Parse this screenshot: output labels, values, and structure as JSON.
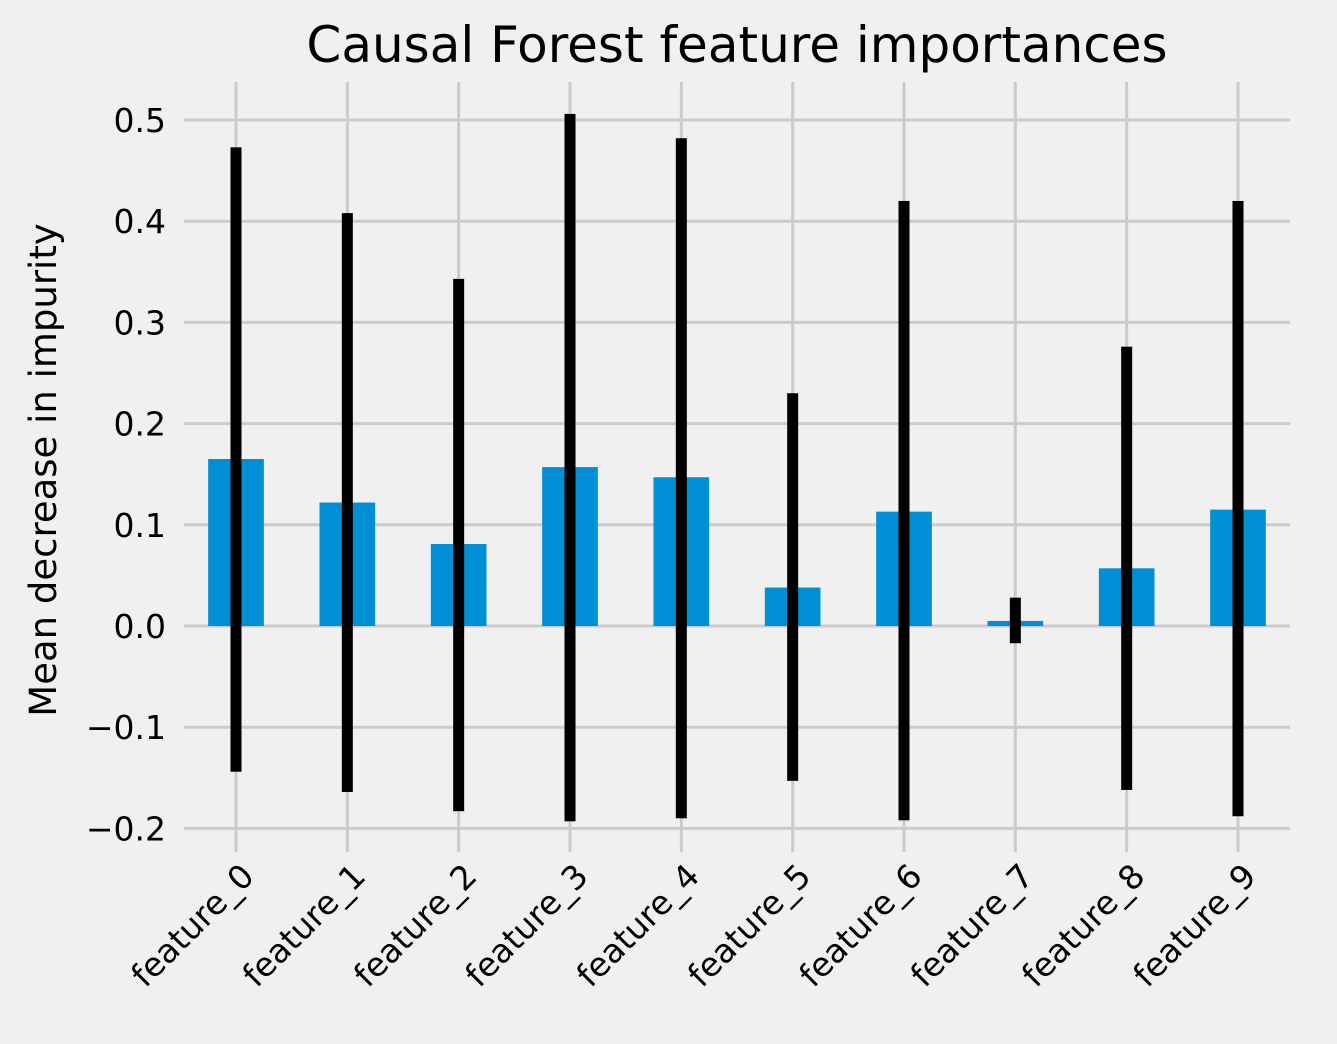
{
  "chart_data": {
    "type": "bar",
    "title": "Causal Forest feature importances",
    "xlabel": "",
    "ylabel": "Mean decrease in impurity",
    "categories": [
      "feature_0",
      "feature_1",
      "feature_2",
      "feature_3",
      "feature_4",
      "feature_5",
      "feature_6",
      "feature_7",
      "feature_8",
      "feature_9"
    ],
    "values": [
      0.165,
      0.122,
      0.081,
      0.157,
      0.147,
      0.038,
      0.113,
      0.005,
      0.057,
      0.115
    ],
    "error_upper": [
      0.473,
      0.408,
      0.343,
      0.506,
      0.482,
      0.23,
      0.42,
      0.028,
      0.276,
      0.42
    ],
    "error_lower": [
      -0.144,
      -0.164,
      -0.183,
      -0.193,
      -0.19,
      -0.153,
      -0.192,
      -0.017,
      -0.162,
      -0.188
    ],
    "ylim": [
      -0.223,
      0.538
    ],
    "yticks": [
      -0.2,
      -0.1,
      0.0,
      0.1,
      0.2,
      0.3,
      0.4,
      0.5
    ],
    "ytick_labels": [
      "−0.2",
      "−0.1",
      "0.0",
      "0.1",
      "0.2",
      "0.3",
      "0.4",
      "0.5"
    ],
    "grid": true,
    "legend": null,
    "bar_color": "#008fd5",
    "errorbar_color": "#000000",
    "background_color": "#f0f0f0",
    "grid_color": "#cbcbcb"
  }
}
